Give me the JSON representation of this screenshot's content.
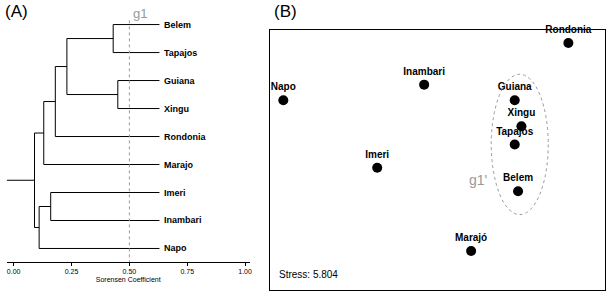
{
  "chart_data": [
    {
      "type": "dendrogram",
      "panel": "(A)",
      "xlabel": "Sorensen Coefficient",
      "xlim": [
        -0.03,
        1.02
      ],
      "xticks": [
        {
          "value": 0,
          "label": "0.00"
        },
        {
          "value": 0.25,
          "label": "0.25"
        },
        {
          "value": 0.5,
          "label": "0.50"
        },
        {
          "value": 0.75,
          "label": "0.75"
        },
        {
          "value": 1,
          "label": "1.00"
        }
      ],
      "leaf_x": 0.63,
      "color": "#000000",
      "tree": {
        "x": 0.09,
        "children": [
          {
            "x": 0.13,
            "children": [
              {
                "x": 0.18,
                "children": [
                  {
                    "x": 0.23,
                    "children": [
                      {
                        "x": 0.43,
                        "children": [
                          {
                            "label": "Belem"
                          },
                          {
                            "label": "Tapajos"
                          }
                        ]
                      },
                      {
                        "x": 0.45,
                        "children": [
                          {
                            "label": "Guiana"
                          },
                          {
                            "label": "Xingu"
                          }
                        ]
                      }
                    ]
                  },
                  {
                    "label": "Rondonia"
                  }
                ]
              },
              {
                "label": "Marajo"
              }
            ]
          },
          {
            "x": 0.11,
            "children": [
              {
                "x": 0.16,
                "children": [
                  {
                    "label": "Imeri"
                  },
                  {
                    "label": "Inambari"
                  }
                ]
              },
              {
                "label": "Napo"
              }
            ]
          }
        ]
      },
      "cut": {
        "x": 0.5,
        "label": "g1"
      }
    },
    {
      "type": "scatter",
      "panel": "(B)",
      "xlim": [
        0,
        100
      ],
      "ylim": [
        0,
        100
      ],
      "tick_labels": false,
      "color": "#000000",
      "points": [
        {
          "label": "Rondonia",
          "x": 89,
          "y": 95
        },
        {
          "label": "Napo",
          "x": 4,
          "y": 73
        },
        {
          "label": "Inambari",
          "x": 46,
          "y": 79
        },
        {
          "label": "Guiana",
          "x": 73,
          "y": 73
        },
        {
          "label": "Xingu",
          "x": 75,
          "y": 63
        },
        {
          "label": "Tapajos",
          "x": 73,
          "y": 56
        },
        {
          "label": "Imeri",
          "x": 32,
          "y": 47
        },
        {
          "label": "Belem",
          "x": 74,
          "y": 38
        },
        {
          "label": "Marajó",
          "x": 60,
          "y": 15
        }
      ],
      "group": {
        "label": "g1'",
        "x": [
          66,
          83
        ],
        "y": [
          29,
          83
        ]
      },
      "annotation": "Stress: 5.804"
    }
  ]
}
